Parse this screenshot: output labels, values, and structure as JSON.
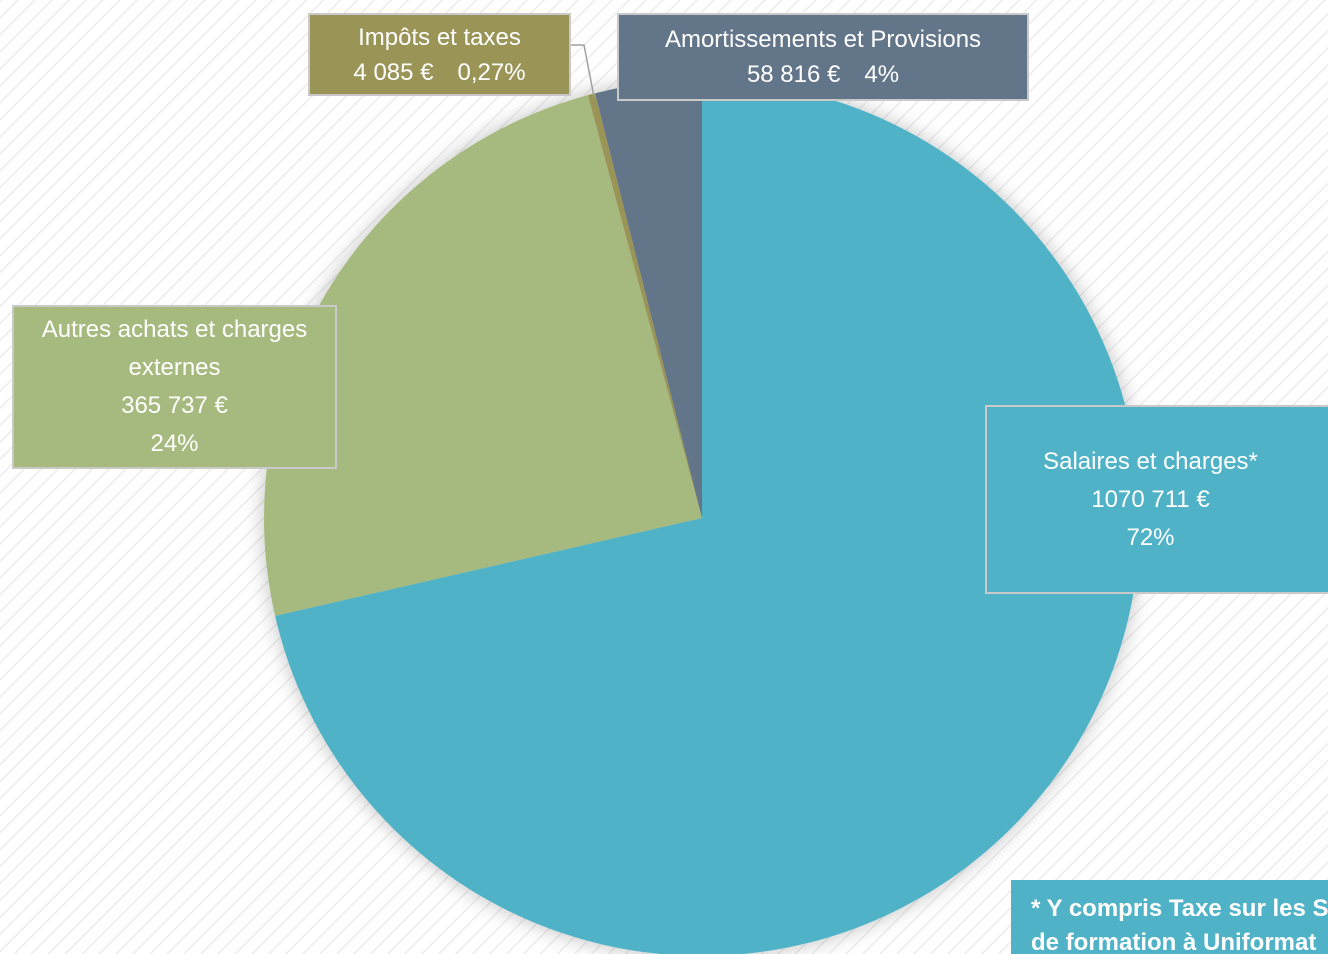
{
  "chart_data": {
    "type": "pie",
    "categories": [
      "Salaires et charges*",
      "Autres achats et charges externes",
      "Impôts et taxes",
      "Amortissements et Provisions"
    ],
    "values": [
      1070711,
      365737,
      4085,
      58816
    ],
    "value_labels": [
      "1070 711 €",
      "365 737 €",
      "4 085 €",
      "58 816 €"
    ],
    "percents": [
      72,
      24,
      0.27,
      4
    ],
    "percent_labels": [
      "72%",
      "24%",
      "0,27%",
      "4%"
    ],
    "colors": [
      "#4fb2c7",
      "#a6b97e",
      "#9a9457",
      "#637588"
    ],
    "footnote": [
      "* Y compris Taxe sur les Sa",
      "de formation à Uniformat"
    ]
  }
}
